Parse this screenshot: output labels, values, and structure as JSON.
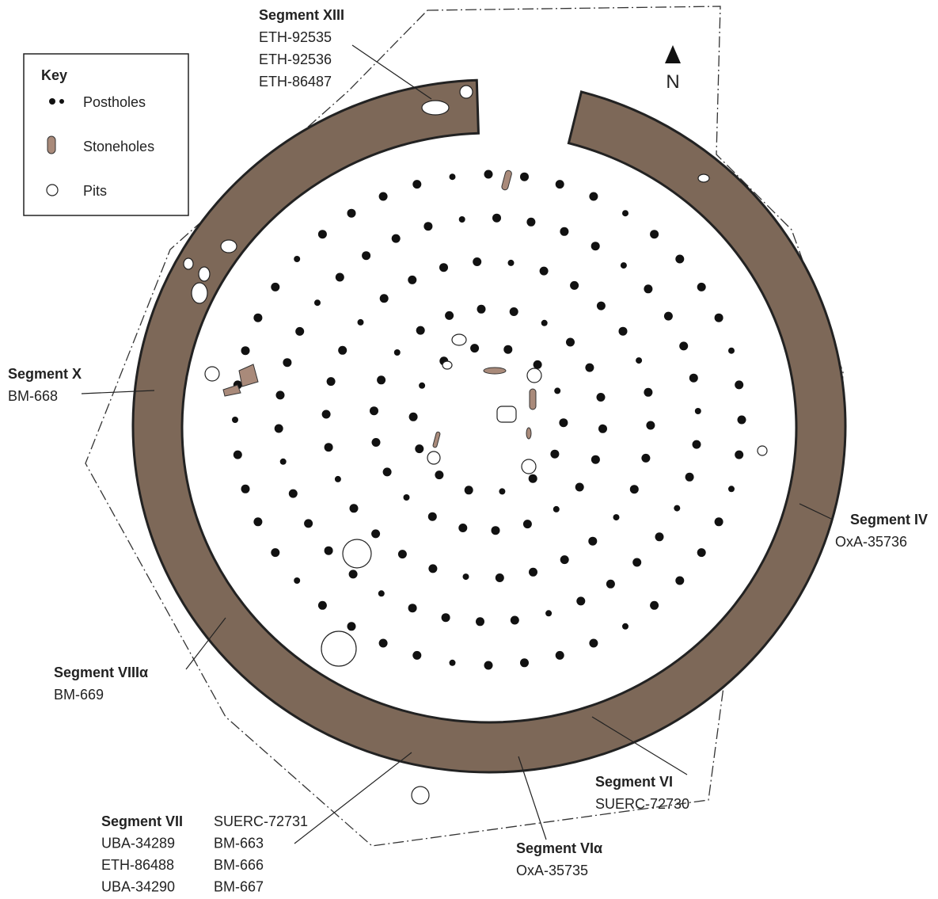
{
  "key": {
    "title": "Key",
    "items": [
      "Postholes",
      "Stoneholes",
      "Pits"
    ]
  },
  "north": "N",
  "segments": [
    {
      "name": "Segment XIII",
      "samples": [
        "ETH-92535",
        "ETH-92536",
        "ETH-86487"
      ]
    },
    {
      "name": "Segment X",
      "samples": [
        "BM-668"
      ]
    },
    {
      "name": "Segment IV",
      "samples": [
        "OxA-35736"
      ]
    },
    {
      "name": "Segment VIIIα",
      "samples": [
        "BM-669"
      ]
    },
    {
      "name": "Segment VI",
      "samples": [
        "SUERC-72730"
      ]
    },
    {
      "name": "Segment VIα",
      "samples": [
        "OxA-35735"
      ]
    },
    {
      "name": "Segment VII",
      "samples": [
        "UBA-34289",
        "ETH-86488",
        "UBA-34290",
        "SUERC-72731",
        "BM-663",
        "BM-666",
        "BM-667"
      ]
    }
  ]
}
